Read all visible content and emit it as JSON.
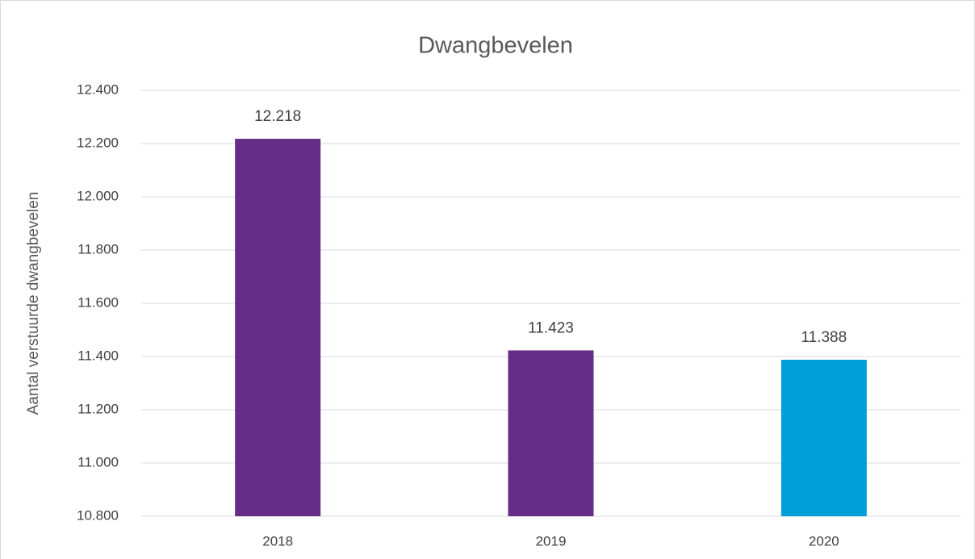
{
  "chart_data": {
    "type": "bar",
    "title": "Dwangbevelen",
    "y_label": "Aantal verstuurde dwangbevelen",
    "categories": [
      "2018",
      "2019",
      "2020"
    ],
    "values": [
      12218,
      11423,
      11388
    ],
    "value_labels": [
      "12.218",
      "11.423",
      "11.388"
    ],
    "colors": [
      "#652d86",
      "#652d86",
      "#009fda"
    ],
    "ylim": [
      10800,
      12400
    ],
    "yticks": [
      {
        "value": 10800,
        "label": "10.800"
      },
      {
        "value": 11000,
        "label": "11.000"
      },
      {
        "value": 11200,
        "label": "11.200"
      },
      {
        "value": 11400,
        "label": "11.400"
      },
      {
        "value": 11600,
        "label": "11.600"
      },
      {
        "value": 11800,
        "label": "11.800"
      },
      {
        "value": 12000,
        "label": "12.000"
      },
      {
        "value": 12200,
        "label": "12.200"
      },
      {
        "value": 12400,
        "label": "12.400"
      }
    ],
    "grid": true
  }
}
